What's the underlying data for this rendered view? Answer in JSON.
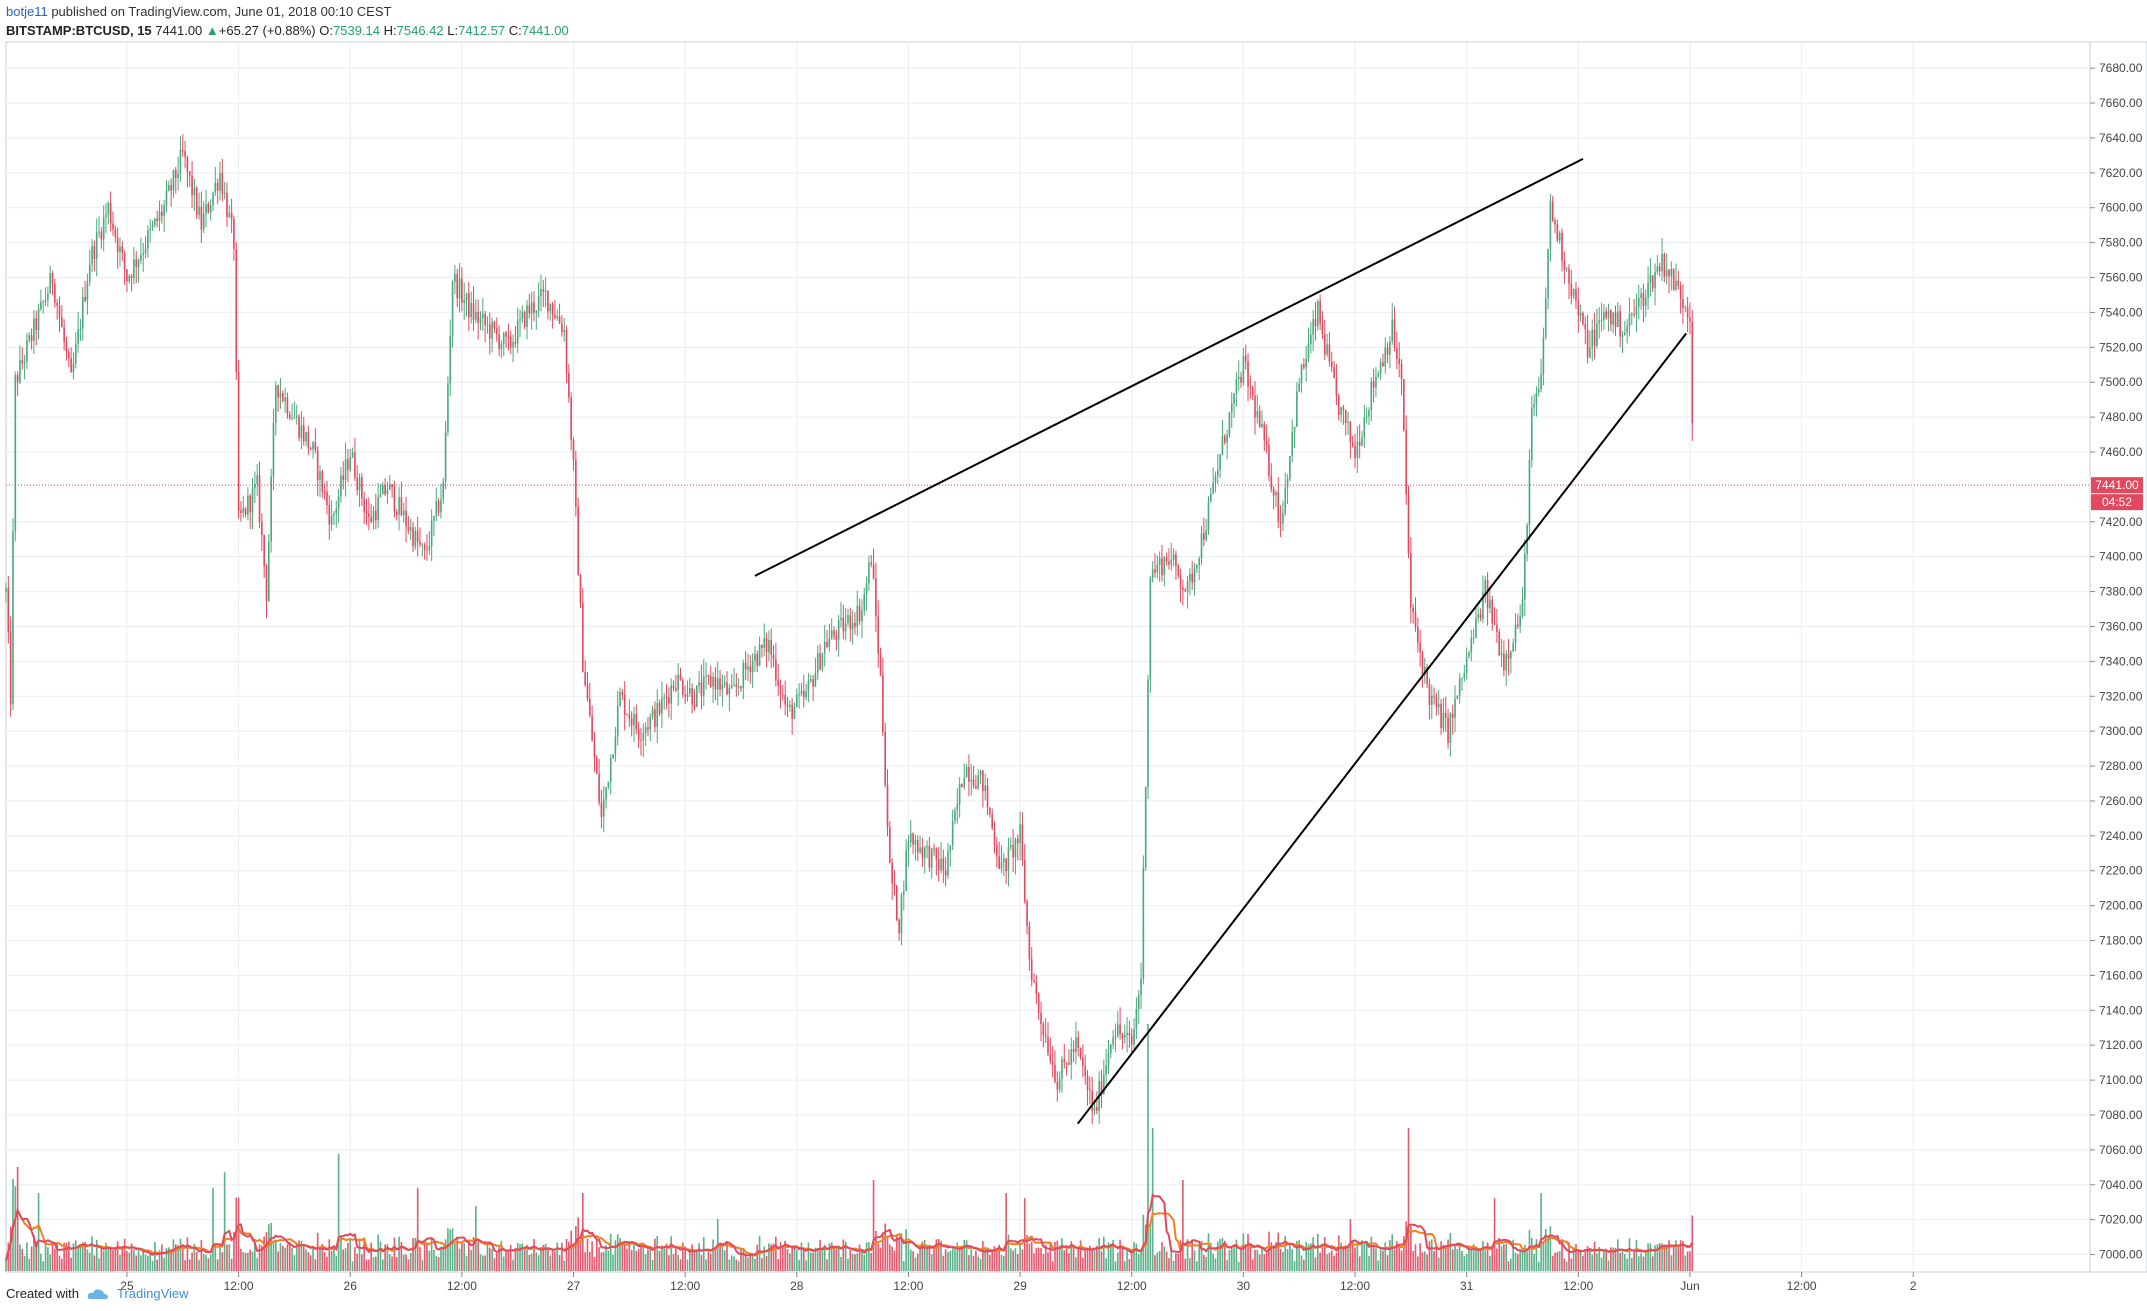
{
  "header": {
    "user": "botje11",
    "published": "published on TradingView.com, June 01, 2018 00:10 CEST",
    "symbol": "BITSTAMP:BTCUSD, 15",
    "last": "7441.00",
    "change_arrow": "▲",
    "change": "+65.27 (+0.88%)",
    "o_label": "O:",
    "o_value": "7539.14",
    "h_label": "H:",
    "h_value": "7546.42",
    "l_label": "L:",
    "l_value": "7412.57",
    "c_label": "C:",
    "c_value": "7441.00"
  },
  "footer": {
    "created_with": "Created with",
    "brand": "TradingView",
    "brand_icon": "tradingview-cloud-icon"
  },
  "colors": {
    "up": "#4aa97c",
    "down": "#e2485e",
    "ma_orange": "#f08020",
    "price_line": "#e2485e",
    "grid": "#e8eef2",
    "trend": "#000000"
  },
  "chart_data": {
    "type": "candlestick",
    "symbol": "BITSTAMP:BTCUSD",
    "interval": "15",
    "y_range": [
      6990,
      7695
    ],
    "y_ticks": [
      "7680.00",
      "7660.00",
      "7640.00",
      "7620.00",
      "7600.00",
      "7580.00",
      "7560.00",
      "7540.00",
      "7520.00",
      "7500.00",
      "7480.00",
      "7460.00",
      "7420.00",
      "7400.00",
      "7380.00",
      "7360.00",
      "7340.00",
      "7320.00",
      "7300.00",
      "7280.00",
      "7260.00",
      "7240.00",
      "7220.00",
      "7200.00",
      "7180.00",
      "7160.00",
      "7140.00",
      "7120.00",
      "7100.00",
      "7080.00",
      "7060.00",
      "7040.00",
      "7020.00",
      "7000.00"
    ],
    "x_range_hours": [
      -13,
      211
    ],
    "x_ticks": [
      {
        "label": "25",
        "h": 0
      },
      {
        "label": "12:00",
        "h": 12
      },
      {
        "label": "26",
        "h": 24
      },
      {
        "label": "12:00",
        "h": 36
      },
      {
        "label": "27",
        "h": 48
      },
      {
        "label": "12:00",
        "h": 60
      },
      {
        "label": "28",
        "h": 72
      },
      {
        "label": "12:00",
        "h": 84
      },
      {
        "label": "29",
        "h": 96
      },
      {
        "label": "12:00",
        "h": 108
      },
      {
        "label": "30",
        "h": 120
      },
      {
        "label": "12:00",
        "h": 132
      },
      {
        "label": "31",
        "h": 144
      },
      {
        "label": "12:00",
        "h": 156
      },
      {
        "label": "Jun",
        "h": 168
      },
      {
        "label": "12:00",
        "h": 180
      },
      {
        "label": "2",
        "h": 192
      }
    ],
    "price_keypoints": [
      [
        -13,
        7380
      ],
      [
        -12.5,
        7320
      ],
      [
        -12,
        7500
      ],
      [
        -10,
        7530
      ],
      [
        -8,
        7560
      ],
      [
        -6,
        7500
      ],
      [
        -4,
        7570
      ],
      [
        -2,
        7600
      ],
      [
        0,
        7560
      ],
      [
        2,
        7580
      ],
      [
        4,
        7600
      ],
      [
        6,
        7630
      ],
      [
        8,
        7590
      ],
      [
        10,
        7620
      ],
      [
        11.5,
        7580
      ],
      [
        12,
        7420
      ],
      [
        14,
        7440
      ],
      [
        15,
        7380
      ],
      [
        16,
        7500
      ],
      [
        18,
        7480
      ],
      [
        20,
        7460
      ],
      [
        22,
        7420
      ],
      [
        24,
        7460
      ],
      [
        26,
        7420
      ],
      [
        28,
        7440
      ],
      [
        30,
        7420
      ],
      [
        32,
        7400
      ],
      [
        34,
        7440
      ],
      [
        35,
        7560
      ],
      [
        37,
        7540
      ],
      [
        39,
        7530
      ],
      [
        41,
        7520
      ],
      [
        43,
        7540
      ],
      [
        45,
        7550
      ],
      [
        47,
        7530
      ],
      [
        48,
        7450
      ],
      [
        49,
        7340
      ],
      [
        51,
        7250
      ],
      [
        53,
        7320
      ],
      [
        55,
        7300
      ],
      [
        57,
        7310
      ],
      [
        59,
        7330
      ],
      [
        61,
        7320
      ],
      [
        63,
        7330
      ],
      [
        65,
        7320
      ],
      [
        67,
        7340
      ],
      [
        69,
        7350
      ],
      [
        71,
        7310
      ],
      [
        73,
        7320
      ],
      [
        75,
        7350
      ],
      [
        77,
        7360
      ],
      [
        79,
        7370
      ],
      [
        80,
        7400
      ],
      [
        81,
        7330
      ],
      [
        82,
        7220
      ],
      [
        83,
        7190
      ],
      [
        84,
        7240
      ],
      [
        86,
        7230
      ],
      [
        88,
        7220
      ],
      [
        90,
        7280
      ],
      [
        92,
        7270
      ],
      [
        94,
        7220
      ],
      [
        96,
        7240
      ],
      [
        97,
        7170
      ],
      [
        98,
        7140
      ],
      [
        100,
        7100
      ],
      [
        102,
        7120
      ],
      [
        104,
        7080
      ],
      [
        106,
        7130
      ],
      [
        108,
        7120
      ],
      [
        109,
        7160
      ],
      [
        110,
        7390
      ],
      [
        112,
        7400
      ],
      [
        114,
        7380
      ],
      [
        116,
        7420
      ],
      [
        118,
        7470
      ],
      [
        120,
        7510
      ],
      [
        122,
        7470
      ],
      [
        124,
        7420
      ],
      [
        126,
        7500
      ],
      [
        128,
        7540
      ],
      [
        130,
        7490
      ],
      [
        132,
        7460
      ],
      [
        134,
        7500
      ],
      [
        136,
        7530
      ],
      [
        137,
        7500
      ],
      [
        138,
        7370
      ],
      [
        140,
        7320
      ],
      [
        142,
        7300
      ],
      [
        144,
        7340
      ],
      [
        146,
        7380
      ],
      [
        148,
        7340
      ],
      [
        150,
        7370
      ],
      [
        151,
        7480
      ],
      [
        152,
        7500
      ],
      [
        153,
        7600
      ],
      [
        155,
        7560
      ],
      [
        157,
        7520
      ],
      [
        159,
        7540
      ],
      [
        161,
        7530
      ],
      [
        163,
        7550
      ],
      [
        165,
        7570
      ],
      [
        167,
        7550
      ],
      [
        168,
        7540
      ],
      [
        168.4,
        7441
      ]
    ],
    "volume_spikes": [
      [
        -11.8,
        0.4
      ],
      [
        -9.5,
        0.3
      ],
      [
        9.2,
        0.32
      ],
      [
        10.5,
        0.38
      ],
      [
        22.7,
        0.45
      ],
      [
        31.3,
        0.32
      ],
      [
        37.5,
        0.25
      ],
      [
        49,
        0.3
      ],
      [
        63.6,
        0.2
      ],
      [
        80.2,
        0.35
      ],
      [
        94.4,
        0.3
      ],
      [
        96.5,
        0.28
      ],
      [
        109.7,
        0.95
      ],
      [
        110.3,
        0.55
      ],
      [
        113.5,
        0.35
      ],
      [
        131.5,
        0.2
      ],
      [
        137.8,
        0.55
      ],
      [
        147,
        0.28
      ],
      [
        152,
        0.3
      ],
      [
        168.4,
        0.32
      ]
    ],
    "moving_average_color": "orange",
    "last_price_label": "7441.00",
    "countdown_label": "04:52",
    "trendlines": [
      {
        "name": "upper-resistance",
        "from": [
          67.5,
          7389
        ],
        "to": [
          156.5,
          7628
        ]
      },
      {
        "name": "lower-support",
        "from": [
          102.2,
          7075
        ],
        "to": [
          167.6,
          7528
        ]
      }
    ],
    "grid": true
  }
}
